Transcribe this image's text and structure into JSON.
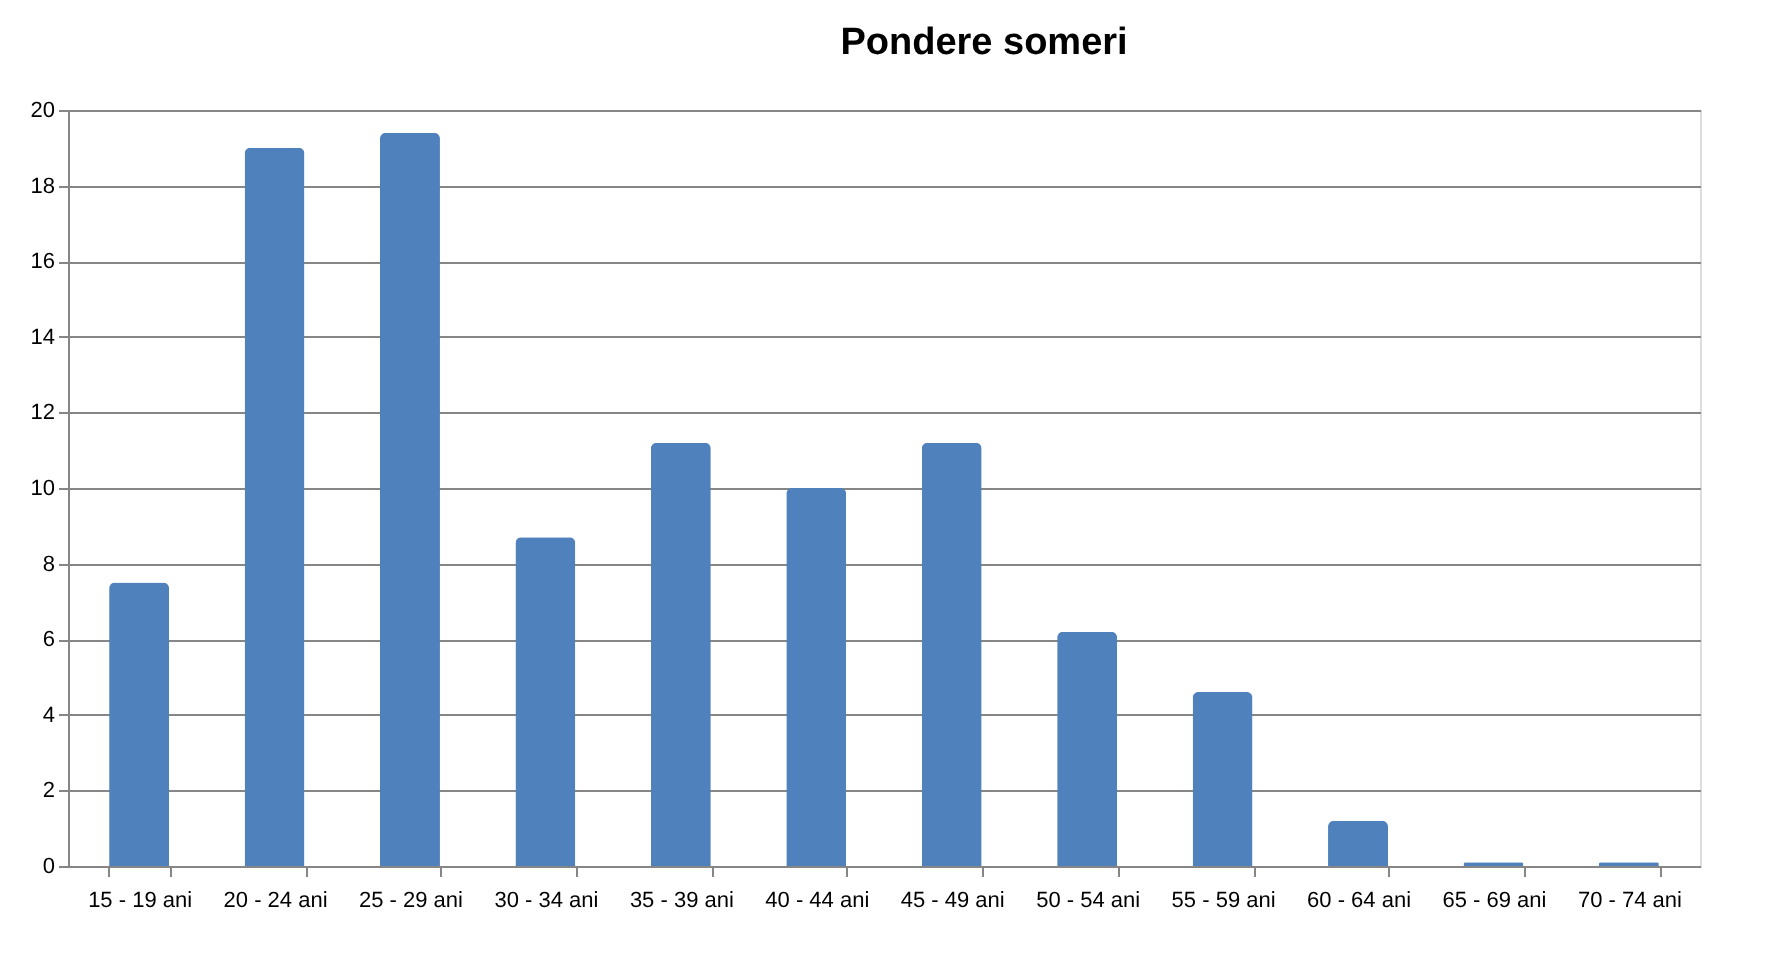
{
  "chart_data": {
    "type": "bar",
    "title": "Pondere someri",
    "categories": [
      "15 - 19 ani",
      "20 - 24 ani",
      "25 - 29 ani",
      "30 - 34 ani",
      "35 - 39 ani",
      "40 - 44 ani",
      "45 - 49 ani",
      "50 - 54 ani",
      "55 - 59 ani",
      "60 - 64 ani",
      "65 - 69 ani",
      "70 - 74 ani"
    ],
    "values": [
      7.5,
      19.0,
      19.4,
      8.7,
      11.2,
      10.0,
      11.2,
      6.2,
      4.6,
      1.2,
      0.1,
      0.1
    ],
    "color": "#4f81bd",
    "ylim": [
      0,
      20
    ],
    "yticks": [
      0,
      2,
      4,
      6,
      8,
      10,
      12,
      14,
      16,
      18,
      20
    ],
    "grid": "y"
  }
}
